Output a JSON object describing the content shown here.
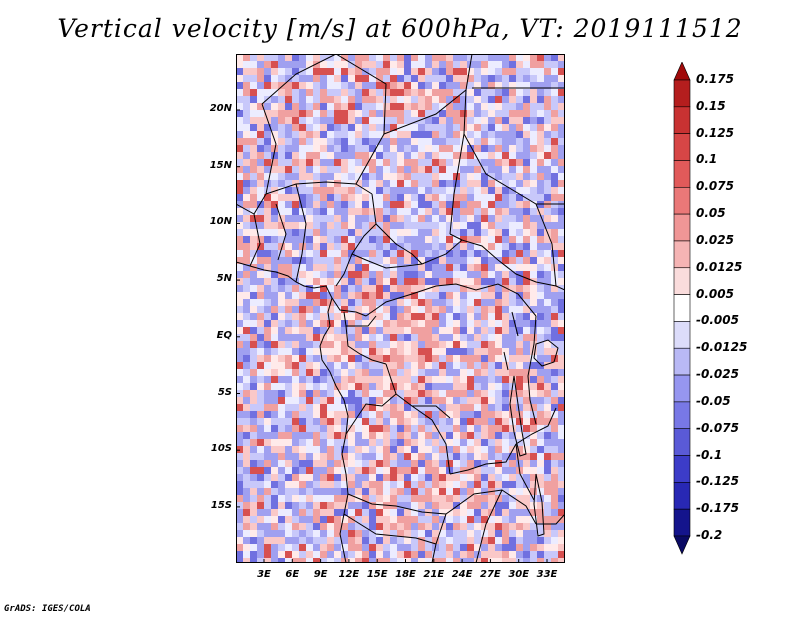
{
  "title": "Vertical velocity [m/s] at 600hPa, VT: 2019111512",
  "credit": "GrADS: IGES/COLA",
  "map": {
    "lat_labels": [
      "20N",
      "15N",
      "10N",
      "5N",
      "EQ",
      "5S",
      "10S",
      "15S"
    ],
    "lon_labels": [
      "3E",
      "6E",
      "9E",
      "12E",
      "15E",
      "18E",
      "21E",
      "24E",
      "27E",
      "30E",
      "33E"
    ]
  },
  "colorbar": {
    "labels": [
      "0.175",
      "0.15",
      "0.125",
      "0.1",
      "0.075",
      "0.05",
      "0.025",
      "0.0125",
      "0.005",
      "-0.005",
      "-0.0125",
      "-0.025",
      "-0.05",
      "-0.075",
      "-0.1",
      "-0.125",
      "-0.175",
      "-0.2"
    ],
    "colors": [
      "#a00a0a",
      "#b41e1e",
      "#c83232",
      "#d74646",
      "#e15a5a",
      "#ea7878",
      "#f09696",
      "#f5b4b4",
      "#fadcdc",
      "#ffffff",
      "#dcdcfa",
      "#b9b9f5",
      "#9696f0",
      "#7878e6",
      "#5a5ad7",
      "#3c3cc8",
      "#2828b4",
      "#14148c",
      "#0a0a64"
    ]
  }
}
